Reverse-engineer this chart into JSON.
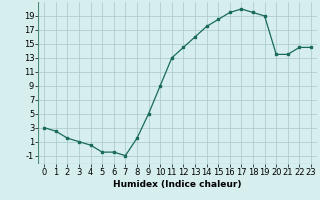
{
  "x": [
    0,
    1,
    2,
    3,
    4,
    5,
    6,
    7,
    8,
    9,
    10,
    11,
    12,
    13,
    14,
    15,
    16,
    17,
    18,
    19,
    20,
    21,
    22,
    23
  ],
  "y": [
    3,
    2.5,
    1.5,
    1,
    0.5,
    -0.5,
    -0.5,
    -1,
    1.5,
    5,
    9,
    13,
    14.5,
    16,
    17.5,
    18.5,
    19.5,
    20,
    19.5,
    19,
    13.5,
    13.5,
    14.5,
    14.5
  ],
  "xlabel": "Humidex (Indice chaleur)",
  "yticks": [
    -1,
    1,
    3,
    5,
    7,
    9,
    11,
    13,
    15,
    17,
    19
  ],
  "xticks": [
    0,
    1,
    2,
    3,
    4,
    5,
    6,
    7,
    8,
    9,
    10,
    11,
    12,
    13,
    14,
    15,
    16,
    17,
    18,
    19,
    20,
    21,
    22,
    23
  ],
  "ylim": [
    -2.2,
    21
  ],
  "xlim": [
    -0.5,
    23.5
  ],
  "line_color": "#1a6b5a",
  "marker": "s",
  "marker_size": 2.0,
  "bg_color": "#d6eeee",
  "grid_color": "#a8c8c8",
  "label_fontsize": 6.5,
  "tick_fontsize": 6.0
}
